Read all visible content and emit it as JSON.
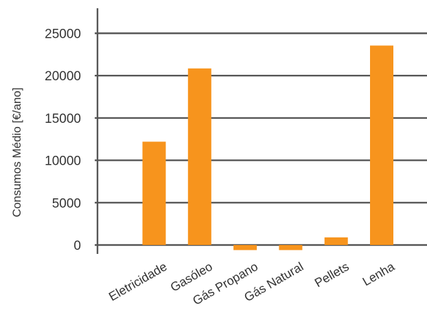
{
  "chart_data": {
    "type": "bar",
    "categories": [
      "Eletricidade",
      "Gasóleo",
      "Gás Propano",
      "Gás Natural",
      "Pellets",
      "Lenha"
    ],
    "values": [
      12200,
      20850,
      -600,
      -600,
      900,
      23550
    ],
    "ylabel": "Consumos Médio [€/ano]",
    "xlabel": "",
    "yticks": [
      0,
      5000,
      10000,
      15000,
      20000,
      25000
    ],
    "ylim": [
      -900,
      28000
    ],
    "grid": true,
    "colors": {
      "bar": "#F7941D",
      "grid": "#555555",
      "axis": "#555555",
      "text": "#333333"
    }
  }
}
